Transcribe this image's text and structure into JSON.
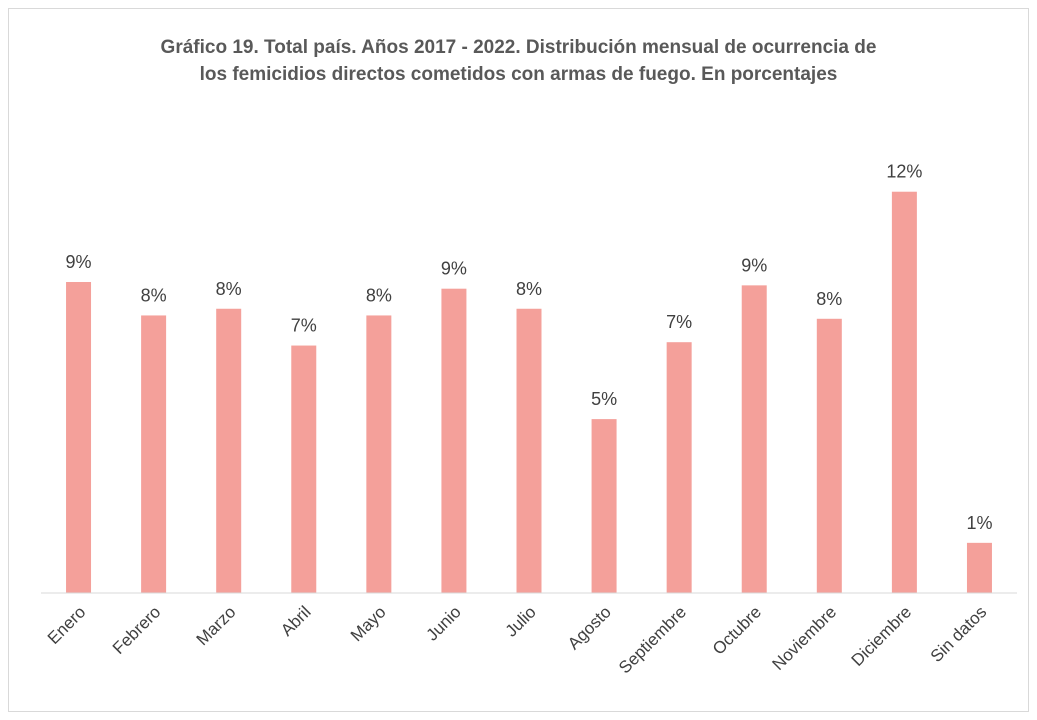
{
  "chart_data": {
    "type": "bar",
    "title_lines": [
      "Gráfico 19. Total país. Años 2017 - 2022. Distribución mensual de ocurrencia de",
      "los femicidios directos cometidos con armas de fuego. En porcentajes"
    ],
    "categories": [
      "Enero",
      "Febrero",
      "Marzo",
      "Abril",
      "Mayo",
      "Junio",
      "Julio",
      "Agosto",
      "Septiembre",
      "Octubre",
      "Noviembre",
      "Diciembre",
      "Sin datos"
    ],
    "values": [
      9.3,
      8.3,
      8.5,
      7.4,
      8.3,
      9.1,
      8.5,
      5.2,
      7.5,
      9.2,
      8.2,
      12.0,
      1.5
    ],
    "data_labels": [
      "9%",
      "8%",
      "8%",
      "7%",
      "8%",
      "9%",
      "8%",
      "5%",
      "7%",
      "9%",
      "8%",
      "12%",
      "1%"
    ],
    "ylim": [
      0,
      12.5
    ],
    "grid": false,
    "legend": false,
    "bar_color": "#f4a09a",
    "axis_color": "#d9d9d9"
  }
}
